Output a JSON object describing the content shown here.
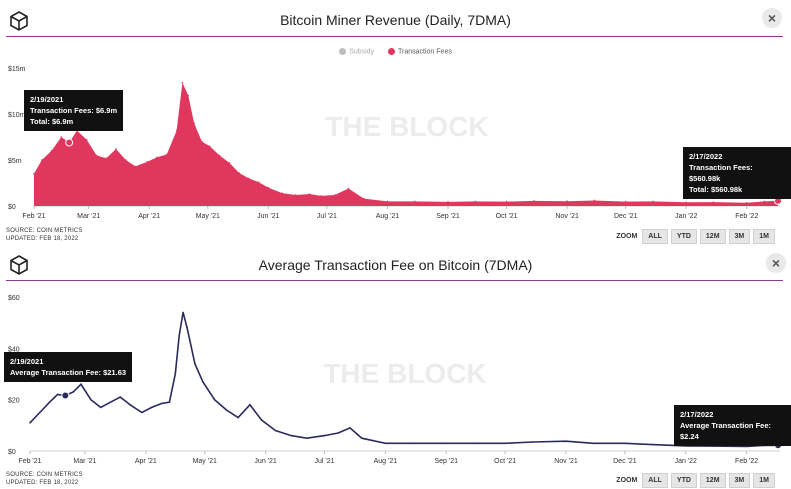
{
  "chart_data": [
    {
      "type": "area",
      "title": "Bitcoin Miner Revenue (Daily, 7DMA)",
      "legend": [
        "Subsidy",
        "Transaction Fees"
      ],
      "legend_placement": "top-center",
      "watermark": "THE BLOCK",
      "x_tick_labels": [
        "Feb '21",
        "Mar '21",
        "Apr '21",
        "May '21",
        "Jun '21",
        "Jul '21",
        "Aug '21",
        "Sep '21",
        "Oct '21",
        "Nov '21",
        "Dec '21",
        "Jan '22",
        "Feb '22"
      ],
      "y_tick_labels": [
        "$15m",
        "$10m",
        "$5m",
        "$0"
      ],
      "ylim": [
        0,
        15000000
      ],
      "series": [
        {
          "name": "Transaction Fees",
          "color": "#e0375f",
          "x": [
            "2021-02-01",
            "2021-02-05",
            "2021-02-10",
            "2021-02-15",
            "2021-02-19",
            "2021-02-23",
            "2021-02-28",
            "2021-03-05",
            "2021-03-10",
            "2021-03-15",
            "2021-03-20",
            "2021-03-25",
            "2021-03-31",
            "2021-04-05",
            "2021-04-10",
            "2021-04-15",
            "2021-04-18",
            "2021-04-21",
            "2021-04-24",
            "2021-04-28",
            "2021-05-02",
            "2021-05-07",
            "2021-05-12",
            "2021-05-17",
            "2021-05-22",
            "2021-05-27",
            "2021-06-01",
            "2021-06-08",
            "2021-06-15",
            "2021-06-22",
            "2021-06-28",
            "2021-07-05",
            "2021-07-12",
            "2021-07-20",
            "2021-08-01",
            "2021-08-15",
            "2021-09-01",
            "2021-09-15",
            "2021-10-01",
            "2021-10-15",
            "2021-11-01",
            "2021-11-15",
            "2021-12-01",
            "2021-12-15",
            "2022-01-01",
            "2022-01-15",
            "2022-02-01",
            "2022-02-10",
            "2022-02-17"
          ],
          "values": [
            3500000,
            5000000,
            6000000,
            7500000,
            6900000,
            8200000,
            7200000,
            5500000,
            5200000,
            6200000,
            5000000,
            4300000,
            4800000,
            5300000,
            5600000,
            8200000,
            13400000,
            12000000,
            9000000,
            7000000,
            6500000,
            5500000,
            4700000,
            3600000,
            3000000,
            2600000,
            2000000,
            1400000,
            1200000,
            1300000,
            1100000,
            1200000,
            1900000,
            800000,
            500000,
            500000,
            450000,
            500000,
            480000,
            550000,
            520000,
            600000,
            480000,
            500000,
            400000,
            420000,
            350000,
            500000,
            560980
          ]
        },
        {
          "name": "Subsidy",
          "color": "#bdbdbd",
          "x": [],
          "values": []
        }
      ],
      "tooltips": [
        {
          "lines": [
            "2/19/2021",
            "Transaction Fees: $6.9m",
            "Total: $6.9m"
          ]
        },
        {
          "lines": [
            "2/17/2022",
            "Transaction Fees: $560.98k",
            "Total: $560.98k"
          ]
        }
      ],
      "source": "SOURCE: COIN METRICS",
      "updated": "UPDATED: FEB 18, 2022"
    },
    {
      "type": "line",
      "title": "Average Transaction Fee on Bitcoin (7DMA)",
      "watermark": "THE BLOCK",
      "x_tick_labels": [
        "Feb '21",
        "Mar '21",
        "Apr '21",
        "May '21",
        "Jun '21",
        "Jul '21",
        "Aug '21",
        "Sep '21",
        "Oct '21",
        "Nov '21",
        "Dec '21",
        "Jan '22",
        "Feb '22"
      ],
      "y_tick_labels": [
        "$60",
        "$40",
        "$20",
        "$0"
      ],
      "ylim": [
        0,
        60
      ],
      "series": [
        {
          "name": "Average Transaction Fee",
          "color": "#2a2a5c",
          "x": [
            "2021-02-01",
            "2021-02-06",
            "2021-02-11",
            "2021-02-15",
            "2021-02-19",
            "2021-02-23",
            "2021-02-27",
            "2021-03-04",
            "2021-03-09",
            "2021-03-14",
            "2021-03-19",
            "2021-03-24",
            "2021-03-30",
            "2021-04-04",
            "2021-04-09",
            "2021-04-13",
            "2021-04-16",
            "2021-04-18",
            "2021-04-20",
            "2021-04-22",
            "2021-04-26",
            "2021-04-30",
            "2021-05-06",
            "2021-05-12",
            "2021-05-18",
            "2021-05-24",
            "2021-05-30",
            "2021-06-06",
            "2021-06-14",
            "2021-06-22",
            "2021-07-01",
            "2021-07-08",
            "2021-07-14",
            "2021-07-20",
            "2021-08-01",
            "2021-08-15",
            "2021-09-01",
            "2021-09-15",
            "2021-10-01",
            "2021-10-15",
            "2021-11-01",
            "2021-11-15",
            "2021-12-01",
            "2021-12-15",
            "2022-01-01",
            "2022-01-15",
            "2022-02-01",
            "2022-02-10",
            "2022-02-17"
          ],
          "values": [
            11,
            15,
            19,
            22,
            21.63,
            23,
            26,
            20,
            17,
            19,
            21,
            18,
            15,
            17,
            18.5,
            19,
            30,
            45,
            54,
            48,
            34,
            27,
            20,
            16,
            13,
            18,
            12,
            8,
            6,
            5,
            6,
            7,
            9,
            5,
            3,
            3,
            3,
            3,
            3,
            3.5,
            3.8,
            3,
            3,
            2.5,
            2,
            1.9,
            1.8,
            2.2,
            2.24
          ]
        }
      ],
      "tooltips": [
        {
          "lines": [
            "2/19/2021",
            "Average Transaction Fee: $21.63"
          ]
        },
        {
          "lines": [
            "2/17/2022",
            "Average Transaction Fee: $2.24"
          ]
        }
      ],
      "source": "SOURCE: COIN METRICS",
      "updated": "UPDATED: FEB 18, 2022"
    }
  ],
  "ui": {
    "close_icon": "×",
    "zoom_label": "ZOOM",
    "zoom_options": [
      "ALL",
      "YTD",
      "12M",
      "3M",
      "1M"
    ]
  },
  "colors": {
    "accent_divider": "#8a3b8f",
    "fees": "#e0375f",
    "line": "#2a2a5c",
    "tooltip_bg": "#111111"
  }
}
